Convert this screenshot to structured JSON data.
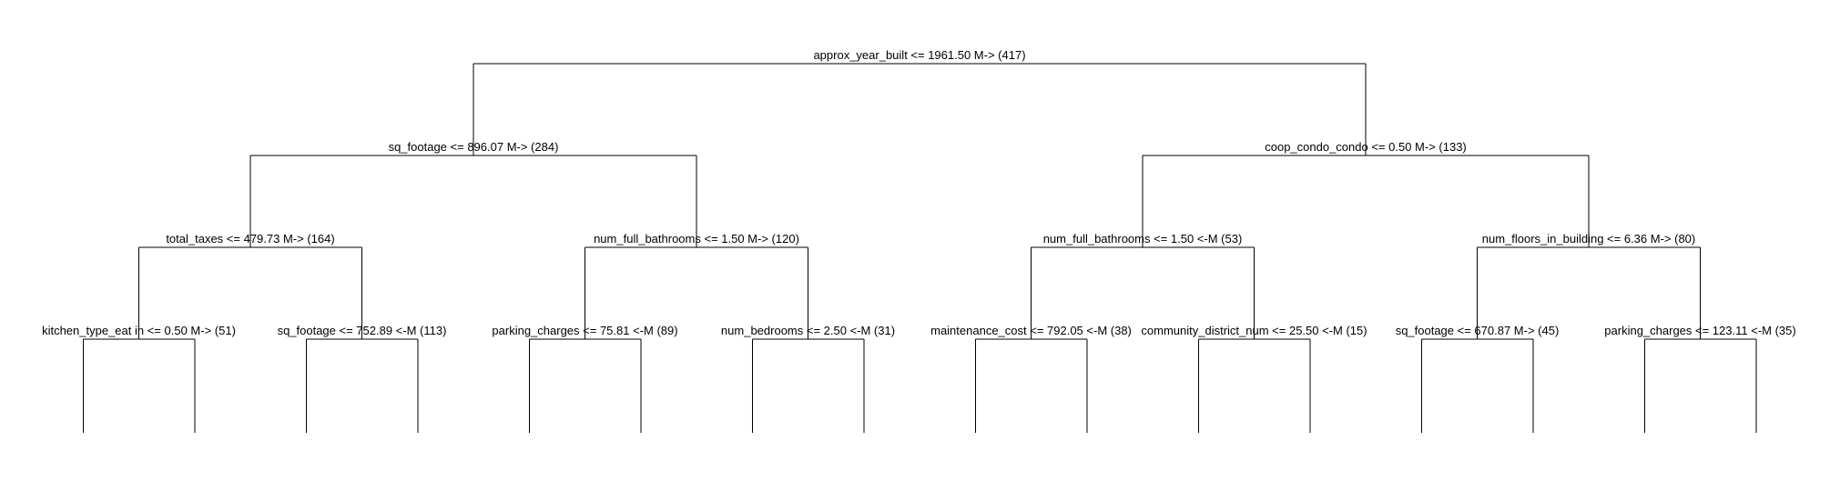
{
  "tree": {
    "root": {
      "label": "approx_year_built <= 1961.50 M-> (417)",
      "left": {
        "label": "sq_footage <= 896.07 M-> (284)",
        "left": {
          "label": "total_taxes <= 479.73 M-> (164)",
          "left": {
            "label": "kitchen_type_eat in <= 0.50 M-> (51)"
          },
          "right": {
            "label": "sq_footage <= 752.89 <-M (113)"
          }
        },
        "right": {
          "label": "num_full_bathrooms <= 1.50 M-> (120)",
          "left": {
            "label": "parking_charges <= 75.81 <-M (89)"
          },
          "right": {
            "label": "num_bedrooms <= 2.50 <-M (31)"
          }
        }
      },
      "right": {
        "label": "coop_condo_condo <= 0.50 M-> (133)",
        "left": {
          "label": "num_full_bathrooms <= 1.50 <-M (53)",
          "left": {
            "label": "maintenance_cost <= 792.05 <-M (38)"
          },
          "right": {
            "label": "community_district_num <= 25.50 <-M (15)"
          }
        },
        "right": {
          "label": "num_floors_in_building <= 6.36 M-> (80)",
          "left": {
            "label": "sq_footage <= 670.87 M-> (45)"
          },
          "right": {
            "label": "parking_charges <= 123.11 <-M (35)"
          }
        }
      }
    }
  }
}
